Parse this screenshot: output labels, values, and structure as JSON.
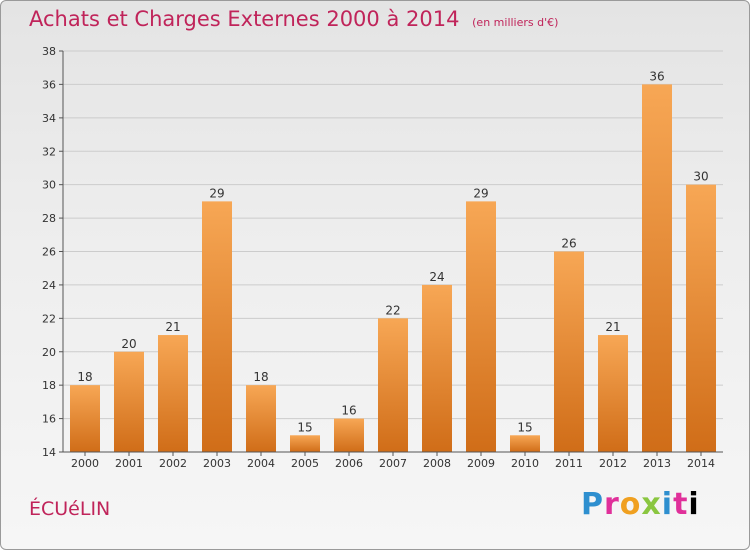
{
  "header": {
    "title": "Achats et Charges Externes 2000 à 2014",
    "subtitle": "(en milliers d'€)"
  },
  "location": "ÉCUéLIN",
  "logo": {
    "letters": [
      "P",
      "r",
      "o",
      "x",
      "i",
      "t",
      "i"
    ]
  },
  "colors": {
    "title": "#c0245a",
    "bar_top": "#f7a755",
    "bar_bottom": "#d06d18",
    "axis": "#555555",
    "grid": "#cccccc"
  },
  "chart_data": {
    "type": "bar",
    "title": "Achats et Charges Externes 2000 à 2014",
    "subtitle": "(en milliers d'€)",
    "xlabel": "",
    "ylabel": "",
    "categories": [
      "2000",
      "2001",
      "2002",
      "2003",
      "2004",
      "2005",
      "2006",
      "2007",
      "2008",
      "2009",
      "2010",
      "2011",
      "2012",
      "2013",
      "2014"
    ],
    "values": [
      18,
      20,
      21,
      29,
      18,
      15,
      16,
      22,
      24,
      29,
      15,
      26,
      21,
      36,
      30
    ],
    "ylim": [
      14,
      38
    ],
    "yticks": [
      14,
      16,
      18,
      20,
      22,
      24,
      26,
      28,
      30,
      32,
      34,
      36,
      38
    ],
    "grid": "horizontal",
    "legend": "none"
  }
}
